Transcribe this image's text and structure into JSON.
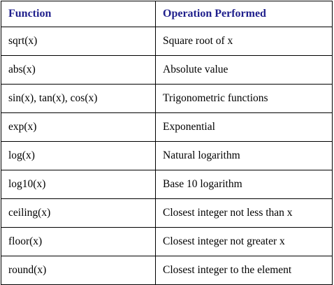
{
  "table": {
    "headers": [
      "Function",
      "Operation Performed"
    ],
    "header_color": "#1f1f8c",
    "rows": [
      [
        "sqrt(x)",
        "Square root of x"
      ],
      [
        "abs(x)",
        "Absolute value"
      ],
      [
        "sin(x), tan(x), cos(x)",
        "Trigonometric functions"
      ],
      [
        "exp(x)",
        "Exponential"
      ],
      [
        "log(x)",
        "Natural logarithm"
      ],
      [
        "log10(x)",
        "Base 10 logarithm"
      ],
      [
        "ceiling(x)",
        "Closest integer not less than x"
      ],
      [
        "floor(x)",
        "Closest integer not greater x"
      ],
      [
        "round(x)",
        "Closest integer to the element"
      ]
    ]
  }
}
